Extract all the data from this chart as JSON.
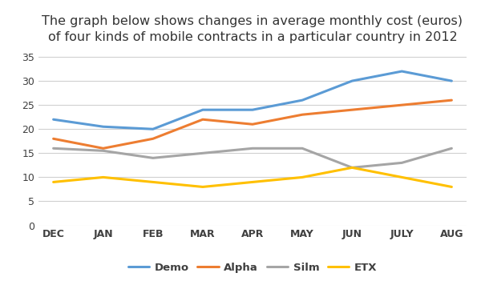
{
  "title_line1": "The graph below shows changes in average monthly cost (euros)",
  "title_line2": "of four kinds of mobile contracts in a particular country in 2012",
  "x_labels": [
    "DEC",
    "JAN",
    "FEB",
    "MAR",
    "APR",
    "MAY",
    "JUN",
    "JULY",
    "AUG"
  ],
  "series": {
    "Demo": [
      22,
      20.5,
      20,
      24,
      24,
      26,
      30,
      32,
      30
    ],
    "Alpha": [
      18,
      16,
      18,
      22,
      21,
      23,
      24,
      25,
      26
    ],
    "Silm": [
      16,
      15.5,
      14,
      15,
      16,
      16,
      12,
      13,
      16
    ],
    "ETX": [
      9,
      10,
      9,
      8,
      9,
      10,
      12,
      10,
      8
    ]
  },
  "colors": {
    "Demo": "#5B9BD5",
    "Alpha": "#ED7D31",
    "Silm": "#A5A5A5",
    "ETX": "#FFC000"
  },
  "ylim": [
    0,
    36
  ],
  "yticks": [
    0,
    5,
    10,
    15,
    20,
    25,
    30,
    35
  ],
  "legend_order": [
    "Demo",
    "Alpha",
    "Silm",
    "ETX"
  ],
  "title_fontsize": 11.5,
  "tick_fontsize": 9,
  "legend_fontsize": 9.5,
  "linewidth": 2.2,
  "background_color": "#ffffff",
  "grid_color": "#d0d0d0",
  "text_color": "#404040",
  "title_color": "#333333"
}
